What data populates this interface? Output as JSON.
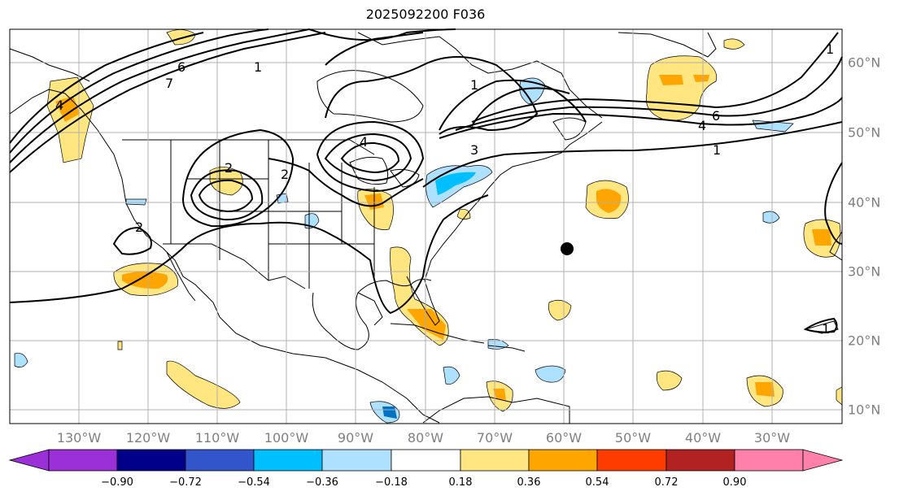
{
  "title": "2025092200 F036",
  "map": {
    "lon_range": [
      -140,
      -20
    ],
    "lat_range": [
      8,
      65
    ],
    "gridlines": true,
    "lon_labels": [
      "130°W",
      "120°W",
      "110°W",
      "100°W",
      "90°W",
      "80°W",
      "70°W",
      "60°W",
      "50°W",
      "40°W",
      "30°W"
    ],
    "lat_labels": [
      "60°N",
      "50°N",
      "40°N",
      "30°N",
      "20°N",
      "10°N"
    ],
    "contour_labels": [
      "4",
      "6",
      "7",
      "1",
      "2",
      "2",
      "4",
      "3",
      "1",
      "6",
      "4",
      "1",
      "2",
      "1",
      "1"
    ],
    "colors": {
      "contour": "#000000",
      "coast": "#000000",
      "grid": "#b0b0b0",
      "positive_light": "#ffe680",
      "positive_mid": "#ffa500",
      "negative_light": "#aee0ff",
      "negative_mid": "#00bfff",
      "negative_dark": "#0072c6",
      "marker": "#000000"
    }
  },
  "colorbar": {
    "ticks": [
      "−0.90",
      "−0.72",
      "−0.54",
      "−0.36",
      "−0.18",
      "0.18",
      "0.36",
      "0.54",
      "0.72",
      "0.90"
    ],
    "colors": [
      "#9b30d9",
      "#00008b",
      "#3355cc",
      "#00bfff",
      "#aee0ff",
      "#ffffff",
      "#ffe680",
      "#ffa500",
      "#ff3c00",
      "#b22222",
      "#ff80aa"
    ]
  }
}
